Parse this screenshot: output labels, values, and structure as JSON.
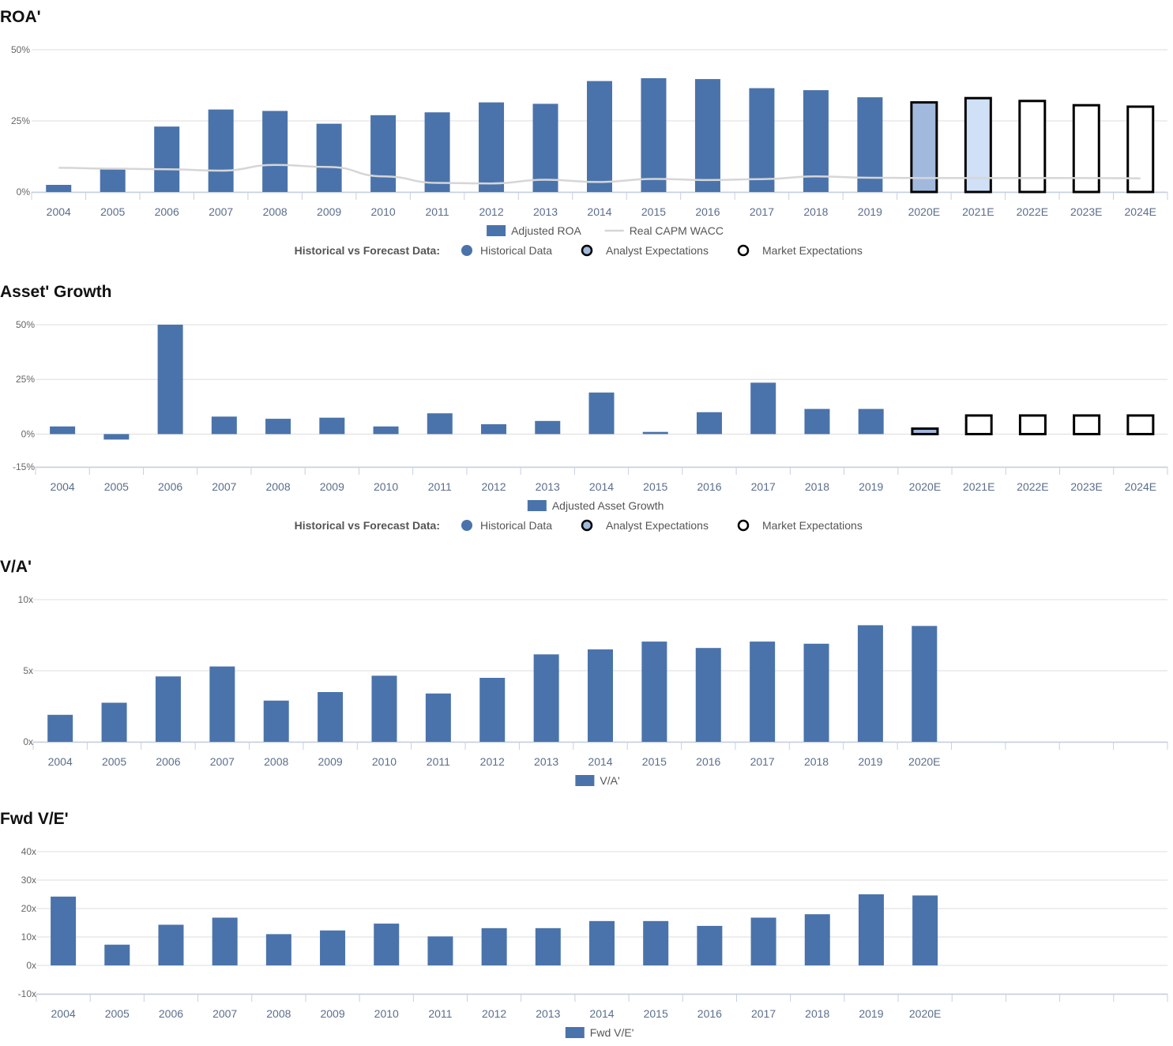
{
  "colors": {
    "historical": "#4a73ab",
    "analyst_2020": "#a2b9de",
    "analyst_2021": "#cfe0f7",
    "market": "#ffffff",
    "outline": "#000000",
    "wacc_line": "#d6d6d6",
    "grid": "#dddddd",
    "axis": "#c5d0e0"
  },
  "forecast_legend": {
    "label": "Historical vs Forecast Data:",
    "items": [
      "Historical Data",
      "Analyst Expectations",
      "Market Expectations"
    ]
  },
  "chart_data": [
    {
      "id": "roa",
      "type": "bar",
      "title": "ROA'",
      "categories": [
        "2004",
        "2005",
        "2006",
        "2007",
        "2008",
        "2009",
        "2010",
        "2011",
        "2012",
        "2013",
        "2014",
        "2015",
        "2016",
        "2017",
        "2018",
        "2019",
        "2020E",
        "2021E",
        "2022E",
        "2023E",
        "2024E"
      ],
      "ylim": [
        0,
        50
      ],
      "yticks": [
        {
          "value": 0,
          "label": "0%"
        },
        {
          "value": 25,
          "label": "25%"
        },
        {
          "value": 50,
          "label": "50%"
        }
      ],
      "series": [
        {
          "name": "Adjusted ROA",
          "kind": "bar",
          "values": [
            2.5,
            8,
            23,
            29,
            28.5,
            24,
            27,
            28,
            31.5,
            31,
            39,
            40,
            39.7,
            36.5,
            35.8,
            33.3,
            31.5,
            33,
            32,
            30.5,
            30
          ],
          "styles": [
            "historical",
            "historical",
            "historical",
            "historical",
            "historical",
            "historical",
            "historical",
            "historical",
            "historical",
            "historical",
            "historical",
            "historical",
            "historical",
            "historical",
            "historical",
            "historical",
            "analyst_2020",
            "analyst_2021",
            "market",
            "market",
            "market"
          ]
        },
        {
          "name": "Real CAPM WACC",
          "kind": "line",
          "values": [
            8.5,
            8.2,
            8.0,
            7.5,
            9.5,
            8.8,
            5.5,
            3.2,
            3.0,
            4.3,
            3.5,
            4.6,
            4.2,
            4.5,
            5.5,
            5.0,
            4.9,
            4.9,
            4.9,
            4.9,
            4.8
          ]
        }
      ],
      "show_forecast_legend": true
    },
    {
      "id": "asset_growth",
      "type": "bar",
      "title": "Asset' Growth",
      "categories": [
        "2004",
        "2005",
        "2006",
        "2007",
        "2008",
        "2009",
        "2010",
        "2011",
        "2012",
        "2013",
        "2014",
        "2015",
        "2016",
        "2017",
        "2018",
        "2019",
        "2020E",
        "2021E",
        "2022E",
        "2023E",
        "2024E"
      ],
      "ylim": [
        -15,
        50
      ],
      "yticks": [
        {
          "value": -15,
          "label": "-15%"
        },
        {
          "value": 0,
          "label": "0%"
        },
        {
          "value": 25,
          "label": "25%"
        },
        {
          "value": 50,
          "label": "50%"
        }
      ],
      "series": [
        {
          "name": "Adjusted Asset Growth",
          "kind": "bar",
          "values": [
            3.5,
            -2.5,
            50,
            8,
            7,
            7.5,
            3.5,
            9.5,
            4.5,
            6,
            19,
            1,
            10,
            23.5,
            11.5,
            11.5,
            2.5,
            8.5,
            8.5,
            8.5,
            8.5
          ],
          "styles": [
            "historical",
            "historical",
            "historical",
            "historical",
            "historical",
            "historical",
            "historical",
            "historical",
            "historical",
            "historical",
            "historical",
            "historical",
            "historical",
            "historical",
            "historical",
            "historical",
            "analyst_2020",
            "market",
            "market",
            "market",
            "market"
          ]
        }
      ],
      "show_forecast_legend": true
    },
    {
      "id": "va",
      "type": "bar",
      "title": "V/A'",
      "categories": [
        "2004",
        "2005",
        "2006",
        "2007",
        "2008",
        "2009",
        "2010",
        "2011",
        "2012",
        "2013",
        "2014",
        "2015",
        "2016",
        "2017",
        "2018",
        "2019",
        "2020E",
        "",
        "",
        "",
        ""
      ],
      "ylim": [
        0,
        10
      ],
      "yticks": [
        {
          "value": 0,
          "label": "0x"
        },
        {
          "value": 5,
          "label": "5x"
        },
        {
          "value": 10,
          "label": "10x"
        }
      ],
      "series": [
        {
          "name": "V/A'",
          "kind": "bar",
          "values": [
            1.9,
            2.75,
            4.6,
            5.3,
            2.9,
            3.5,
            4.65,
            3.4,
            4.5,
            6.15,
            6.5,
            7.05,
            6.6,
            7.05,
            6.9,
            8.2,
            8.15,
            null,
            null,
            null,
            null
          ]
        }
      ],
      "show_forecast_legend": false
    },
    {
      "id": "fwd_ve",
      "type": "bar",
      "title": "Fwd V/E'",
      "categories": [
        "2004",
        "2005",
        "2006",
        "2007",
        "2008",
        "2009",
        "2010",
        "2011",
        "2012",
        "2013",
        "2014",
        "2015",
        "2016",
        "2017",
        "2018",
        "2019",
        "2020E",
        "",
        "",
        "",
        ""
      ],
      "ylim": [
        -10,
        40
      ],
      "yticks": [
        {
          "value": -10,
          "label": "-10x"
        },
        {
          "value": 0,
          "label": "0x"
        },
        {
          "value": 10,
          "label": "10x"
        },
        {
          "value": 20,
          "label": "20x"
        },
        {
          "value": 30,
          "label": "30x"
        },
        {
          "value": 40,
          "label": "40x"
        }
      ],
      "series": [
        {
          "name": "Fwd V/E'",
          "kind": "bar",
          "values": [
            24.2,
            7.3,
            14.3,
            16.8,
            11,
            12.3,
            14.7,
            10.2,
            13.1,
            13.1,
            15.6,
            15.6,
            13.9,
            16.8,
            18,
            25,
            24.6,
            null,
            null,
            null,
            null
          ]
        }
      ],
      "show_forecast_legend": false
    }
  ]
}
